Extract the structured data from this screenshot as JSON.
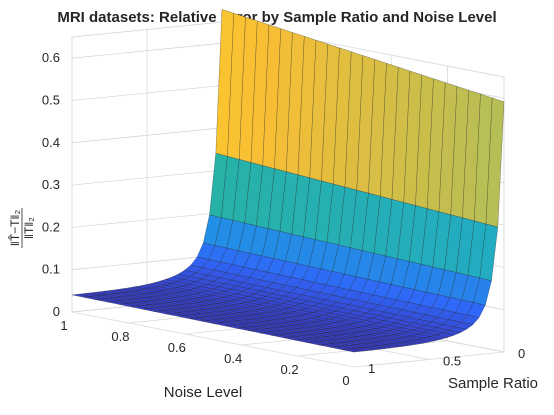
{
  "chart_data": {
    "type": "surface",
    "title": "MRI datasets: Relative Error by Sample Ratio and Noise Level",
    "xlabel": "Noise Level",
    "ylabel": "Sample Ratio",
    "zlabel": "‖T̂−T‖₂ / ‖T‖₂",
    "xlim": [
      0,
      1
    ],
    "ylim": [
      0,
      1
    ],
    "zlim": [
      0,
      0.6
    ],
    "x_ticks": [
      "0",
      "0.2",
      "0.4",
      "0.6",
      "0.8",
      "1"
    ],
    "y_ticks": [
      "0",
      "0.5",
      "1"
    ],
    "z_ticks": [
      "0",
      "0.1",
      "0.2",
      "0.3",
      "0.4",
      "0.5",
      "0.6"
    ],
    "grid": true,
    "colormap": [
      "#3e26a8",
      "#2f67f8",
      "#1da5db",
      "#2cb891",
      "#7cbf72",
      "#f9be34",
      "#f9fb0e"
    ],
    "surface_description": "Relative error ≈ 0.5–0.65 at the lowest sample ratio, decaying toward ≈0.05 as sample ratio increases; error decreases slightly as noise level decreases.",
    "edge_values": {
      "noise_level_1": {
        "sample_ratio": [
          0.0,
          0.05,
          0.1,
          0.2,
          0.3,
          0.5,
          0.7,
          1.0
        ],
        "error": [
          0.65,
          0.5,
          0.32,
          0.22,
          0.17,
          0.11,
          0.08,
          0.05
        ]
      },
      "noise_level_0": {
        "sample_ratio": [
          0.0,
          0.05,
          0.1,
          0.2,
          0.3,
          0.5,
          0.7,
          1.0
        ],
        "error": [
          0.57,
          0.44,
          0.27,
          0.18,
          0.14,
          0.09,
          0.06,
          0.04
        ]
      }
    }
  }
}
